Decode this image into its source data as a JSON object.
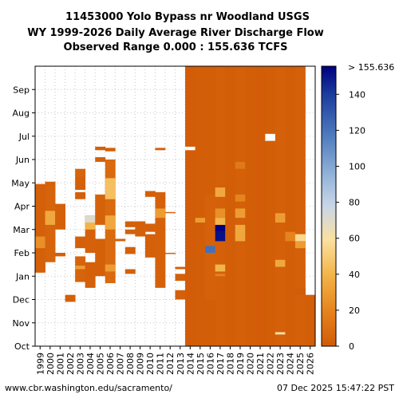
{
  "chart_data": {
    "type": "heatmap",
    "title": [
      "11453000 Yolo Bypass nr Woodland USGS",
      "WY 1999-2026 Daily Average River Discharge Flow",
      "Observed Range 0.000 : 155.636 TCFS"
    ],
    "x_categories": [
      "1999",
      "2000",
      "2001",
      "2002",
      "2003",
      "2004",
      "2005",
      "2006",
      "2007",
      "2008",
      "2009",
      "2010",
      "2011",
      "2012",
      "2013",
      "2014",
      "2015",
      "2016",
      "2017",
      "2018",
      "2019",
      "2020",
      "2021",
      "2022",
      "2023",
      "2024",
      "2025",
      "2026"
    ],
    "y_months": [
      "Oct",
      "Nov",
      "Dec",
      "Jan",
      "Feb",
      "Mar",
      "Apr",
      "May",
      "Jun",
      "Jul",
      "Aug",
      "Sep"
    ],
    "colorbar": {
      "min": 0,
      "max": 155.636,
      "ticks": [
        0,
        20,
        40,
        60,
        80,
        100,
        120,
        140
      ],
      "top_label": "> 155.636",
      "colors": [
        "#d15a06",
        "#e5821c",
        "#f3b246",
        "#fbe0a0",
        "#c9d6e8",
        "#8fb0d6",
        "#4f7cbf",
        "#1a3c9c",
        "#000080"
      ]
    },
    "data_blocks": [
      {
        "year": "1999",
        "start": 3.15,
        "end": 6.95,
        "value": 3
      },
      {
        "year": "1999",
        "start": 4.2,
        "end": 4.7,
        "value": 25
      },
      {
        "year": "2000",
        "start": 3.6,
        "end": 7.0,
        "value": 5
      },
      {
        "year": "2000",
        "start": 5.2,
        "end": 5.8,
        "value": 35
      },
      {
        "year": "2000",
        "start": 6.9,
        "end": 7.05,
        "value": 4
      },
      {
        "year": "2001",
        "start": 5.0,
        "end": 6.1,
        "value": 3
      },
      {
        "year": "2001",
        "start": 3.85,
        "end": 4.0,
        "value": 3
      },
      {
        "year": "2002",
        "start": 1.9,
        "end": 2.2,
        "value": 3
      },
      {
        "year": "2003",
        "start": 2.75,
        "end": 3.85,
        "value": 5
      },
      {
        "year": "2003",
        "start": 3.3,
        "end": 3.45,
        "value": 30
      },
      {
        "year": "2003",
        "start": 4.2,
        "end": 4.7,
        "value": 3
      },
      {
        "year": "2003",
        "start": 6.3,
        "end": 6.6,
        "value": 3
      },
      {
        "year": "2003",
        "start": 6.7,
        "end": 7.3,
        "value": 3
      },
      {
        "year": "2003",
        "start": 7.3,
        "end": 7.6,
        "value": 5
      },
      {
        "year": "2004",
        "start": 2.5,
        "end": 3.6,
        "value": 3
      },
      {
        "year": "2004",
        "start": 4.0,
        "end": 5.6,
        "value": 4
      },
      {
        "year": "2004",
        "start": 5.0,
        "end": 5.3,
        "value": 40
      },
      {
        "year": "2004",
        "start": 5.3,
        "end": 5.6,
        "value": 70
      },
      {
        "year": "2005",
        "start": 3.0,
        "end": 4.6,
        "value": 3
      },
      {
        "year": "2005",
        "start": 5.2,
        "end": 6.5,
        "value": 4
      },
      {
        "year": "2005",
        "start": 7.9,
        "end": 8.1,
        "value": 3
      },
      {
        "year": "2005",
        "start": 8.4,
        "end": 8.55,
        "value": 3
      },
      {
        "year": "2006",
        "start": 2.7,
        "end": 8.0,
        "value": 8
      },
      {
        "year": "2006",
        "start": 6.3,
        "end": 7.2,
        "value": 45
      },
      {
        "year": "2006",
        "start": 5.0,
        "end": 5.6,
        "value": 35
      },
      {
        "year": "2006",
        "start": 3.2,
        "end": 3.5,
        "value": 30
      },
      {
        "year": "2006",
        "start": 8.35,
        "end": 8.5,
        "value": 3
      },
      {
        "year": "2007",
        "start": 4.5,
        "end": 4.6,
        "value": 3
      },
      {
        "year": "2008",
        "start": 3.1,
        "end": 3.3,
        "value": 3
      },
      {
        "year": "2008",
        "start": 3.95,
        "end": 4.25,
        "value": 3
      },
      {
        "year": "2008",
        "start": 4.8,
        "end": 5.0,
        "value": 3
      },
      {
        "year": "2008",
        "start": 5.1,
        "end": 5.35,
        "value": 3
      },
      {
        "year": "2009",
        "start": 4.7,
        "end": 5.35,
        "value": 3
      },
      {
        "year": "2010",
        "start": 3.8,
        "end": 4.8,
        "value": 3
      },
      {
        "year": "2010",
        "start": 4.9,
        "end": 5.25,
        "value": 4
      },
      {
        "year": "2010",
        "start": 6.4,
        "end": 6.65,
        "value": 3
      },
      {
        "year": "2011",
        "start": 2.5,
        "end": 6.6,
        "value": 4
      },
      {
        "year": "2011",
        "start": 5.5,
        "end": 5.9,
        "value": 30
      },
      {
        "year": "2011",
        "start": 8.4,
        "end": 8.5,
        "value": 3
      },
      {
        "year": "2012",
        "start": 3.95,
        "end": 4.0,
        "value": 3
      },
      {
        "year": "2012",
        "start": 5.7,
        "end": 5.75,
        "value": 3
      },
      {
        "year": "2013",
        "start": 2.8,
        "end": 3.1,
        "value": 3
      },
      {
        "year": "2013",
        "start": 2.0,
        "end": 2.4,
        "value": 3
      },
      {
        "year": "2013",
        "start": 3.3,
        "end": 3.4,
        "value": 3
      },
      {
        "year": "2014",
        "start": 0,
        "end": 12,
        "value": 1
      },
      {
        "year": "2015",
        "start": 0,
        "end": 12,
        "value": 2
      },
      {
        "year": "2015",
        "start": 5.3,
        "end": 5.5,
        "value": 30
      },
      {
        "year": "2016",
        "start": 0,
        "end": 12,
        "value": 2
      },
      {
        "year": "2016",
        "start": 2.0,
        "end": 6.5,
        "value": 4
      },
      {
        "year": "2016",
        "start": 4.0,
        "end": 4.3,
        "value": 120
      },
      {
        "year": "2017",
        "start": 0,
        "end": 12,
        "value": 3
      },
      {
        "year": "2017",
        "start": 4.5,
        "end": 4.9,
        "value": 150
      },
      {
        "year": "2017",
        "start": 4.9,
        "end": 5.2,
        "value": 165
      },
      {
        "year": "2017",
        "start": 5.2,
        "end": 5.5,
        "value": 40
      },
      {
        "year": "2017",
        "start": 5.5,
        "end": 5.9,
        "value": 25
      },
      {
        "year": "2017",
        "start": 6.4,
        "end": 6.8,
        "value": 35
      },
      {
        "year": "2017",
        "start": 3.2,
        "end": 3.5,
        "value": 40
      },
      {
        "year": "2017",
        "start": 3.0,
        "end": 3.1,
        "value": 20
      },
      {
        "year": "2018",
        "start": 0,
        "end": 12,
        "value": 2
      },
      {
        "year": "2019",
        "start": 0,
        "end": 12,
        "value": 3
      },
      {
        "year": "2019",
        "start": 4.5,
        "end": 5.2,
        "value": 35
      },
      {
        "year": "2019",
        "start": 5.5,
        "end": 5.9,
        "value": 30
      },
      {
        "year": "2019",
        "start": 6.2,
        "end": 6.5,
        "value": 20
      },
      {
        "year": "2019",
        "start": 7.6,
        "end": 7.9,
        "value": 15
      },
      {
        "year": "2020",
        "start": 0,
        "end": 12,
        "value": 2
      },
      {
        "year": "2021",
        "start": 0,
        "end": 12,
        "value": 1
      },
      {
        "year": "2022",
        "start": 0,
        "end": 12,
        "value": 2
      },
      {
        "year": "2023",
        "start": 0,
        "end": 12,
        "value": 3
      },
      {
        "year": "2023",
        "start": 3.4,
        "end": 3.7,
        "value": 35
      },
      {
        "year": "2023",
        "start": 5.3,
        "end": 5.7,
        "value": 30
      },
      {
        "year": "2023",
        "start": 0.5,
        "end": 0.6,
        "value": 60
      },
      {
        "year": "2024",
        "start": 0,
        "end": 12,
        "value": 2
      },
      {
        "year": "2024",
        "start": 4.5,
        "end": 4.9,
        "value": 20
      },
      {
        "year": "2025",
        "start": 0,
        "end": 12,
        "value": 3
      },
      {
        "year": "2025",
        "start": 4.5,
        "end": 4.8,
        "value": 55
      },
      {
        "year": "2025",
        "start": 4.2,
        "end": 4.5,
        "value": 30
      },
      {
        "year": "2025",
        "start": 2.2,
        "end": 2.5,
        "value": 1
      },
      {
        "year": "2026",
        "start": 0,
        "end": 2.2,
        "value": 2
      }
    ],
    "missing_marks": [
      {
        "year": "2014",
        "start": 8.4,
        "end": 8.55
      },
      {
        "year": "2022",
        "start": 8.8,
        "end": 9.1
      }
    ],
    "footer_left": "www.cbr.washington.edu/sacramento/",
    "footer_right": "07 Dec 2025 15:47:22 PST"
  }
}
